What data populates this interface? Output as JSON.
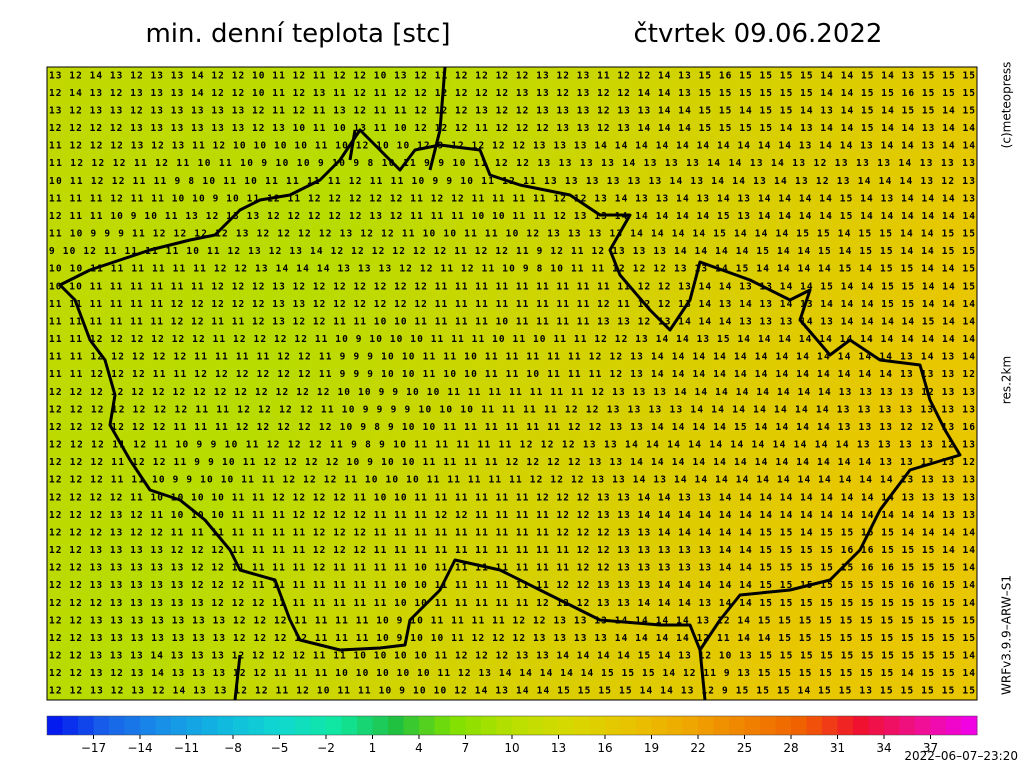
{
  "header": {
    "title": "min. denní teplota [stc]",
    "date": "čtvrtek 09.06.2022"
  },
  "side_labels": {
    "copyright": "(c)meteopress",
    "resolution": "res.2km",
    "model": "WRFv3.9.9–ARW–S1"
  },
  "timestamp": "2022–06–07–23:20",
  "map": {
    "grid": [
      "13 12 14 13 12 13 13 14 12 12 10 11 12 11 12 12 10 13 12 11 12 12 12 12 13 12 13 11 12 12 14 13 15 16 15 15 15 15 14 14 15 14 13 15 15 15",
      "12 14 13 12 13 13 13 14 12 12 10 11 12 13 11 12 11 12 12 12 12 12 12 13 13 12 13 12 12 14 14 13 15 15 15 15 15 15 14 14 15 15 16 15 15 15",
      "13 12 13 13 12 13 13 13 13 13 12 11 12 11 13 12 11 11 12 12 12 13 12 12 13 13 13 12 13 13 14 14 15 15 14 15 15 14 13 14 15 14 15 15 14 15",
      "12 12 12 12 13 13 13 13 13 13 12 13 10 11 10 13 11 10 12 12 12 11 12 12 12 13 13 12 13 14 14 14 15 15 15 15 14 13 14 14 15 14 14 13 14 14",
      "11 12 12 12 13 12 13 11 12 10 10 10 10 11 10 12 10 10 12 9 12 12 12 12 13 13 13 14 14 14 14 14 14 14 14 14 14 13 14 14 13 14 14 13 14 14",
      "11 12 12 12 11 12 11 10 11 10 9 10 10 9 10 9 8 10 11 9 9 10 11 12 12 13 13 13 13 14 13 13 13 14 14 13 14 13 12 13 13 13 14 13 13 13",
      "10 11 12 12 11 11 9 8 10 11 10 11 11 11 11 12 11 11 10 9 9 10 11 12 11 13 13 13 13 13 13 14 13 14 14 13 14 13 12 13 14 14 14 13 12 13",
      "11 11 11 12 11 11 10 10 9 10 11 12 11 12 12 12 12 12 11 12 12 11 11 11 11 12 12 13 14 13 13 14 13 14 13 14 14 14 14 15 14 13 14 14 14 13",
      "12 11 11 10 9 10 11 13 12 13 13 12 12 12 12 12 13 12 11 11 11 10 10 11 11 12 13 13 14 14 14 14 14 15 13 14 14 14 14 15 14 14 14 14 14 14",
      "11 10 9 9 9 11 12 12 12 12 13 12 12 12 12 13 12 12 11 10 10 11 11 10 12 13 13 13 13 14 14 14 14 15 14 14 14 15 15 14 15 15 14 14 15 15",
      "9 10 12 11 11 11 11 10 11 12 13 12 13 14 12 12 12 12 12 12 11 12 12 11 9 12 11 12 13 13 13 14 14 14 14 15 14 14 15 14 15 15 14 14 15 15",
      "10 10 11 11 11 11 11 11 12 12 13 14 14 14 13 13 13 12 12 11 12 11 10 9 8 10 11 11 12 12 12 13 13 14 15 14 14 14 14 15 14 15 15 14 14 15",
      "10 10 11 11 11 11 11 11 12 12 12 13 12 12 12 12 12 12 12 11 11 11 11 11 11 11 11 11 11 12 12 13 14 14 13 13 14 14 15 14 14 15 15 14 14 15",
      "11 11 11 11 11 11 12 12 12 12 12 13 13 12 12 12 12 12 12 11 11 11 11 11 11 11 11 12 11 12 12 13 14 13 14 13 14 13 14 14 14 15 15 14 14 14",
      "11 11 11 11 11 11 12 12 11 11 12 13 12 12 11 11 10 10 11 11 11 11 10 11 11 11 11 13 13 12 13 14 14 14 13 13 13 14 13 14 14 14 14 15 14 14",
      "11 11 12 12 12 12 12 12 11 12 12 12 12 11 10 9 10 10 10 11 11 11 10 11 10 11 11 12 12 13 14 14 13 15 14 14 14 14 14 14 14 14 14 14 14 14",
      "11 11 12 12 12 12 12 11 11 11 11 12 12 11 9 9 9 10 10 11 11 10 11 11 11 11 11 12 12 13 14 14 14 14 14 14 14 14 14 14 14 14 13 14 13 14",
      "11 11 12 12 12 11 11 12 12 12 12 12 12 11 9 9 9 10 10 11 10 10 11 11 10 11 11 11 12 13 14 14 14 14 14 14 14 14 14 14 14 14 13 13 13 12",
      "12 12 12 12 12 12 12 12 12 12 12 12 12 12 10 10 9 9 10 10 11 11 11 11 11 11 11 12 13 13 13 14 14 14 14 14 14 14 14 13 13 13 13 12 13 13",
      "12 12 12 12 12 12 12 11 11 12 12 12 12 11 10 9 9 9 9 10 10 10 11 11 11 11 12 12 13 13 13 13 14 14 14 14 14 14 14 13 13 13 13 13 13 13",
      "12 12 12 12 12 12 11 11 11 12 12 12 12 12 10 9 8 9 10 10 11 11 11 11 11 11 12 12 13 13 14 14 14 14 15 14 14 14 14 13 13 13 12 12 13 16",
      "12 12 12 11 12 11 10 9 9 10 11 12 12 12 11 9 8 9 10 11 11 11 11 11 12 12 12 13 13 14 14 14 14 14 14 14 14 14 14 14 13 13 13 13 12 13",
      "12 12 12 11 12 12 11 9 9 10 11 12 12 12 12 10 9 10 10 11 11 11 11 12 12 12 12 13 13 14 14 14 14 14 14 14 14 14 14 14 14 13 13 13 13 12",
      "12 12 12 11 11 10 9 9 10 10 11 11 12 12 12 11 10 10 10 11 11 11 11 11 12 12 12 13 13 14 13 14 14 14 14 14 14 14 14 14 14 14 13 13 13 13",
      "12 12 12 12 11 10 10 10 10 11 11 12 12 12 12 11 10 10 11 11 11 11 11 11 12 12 12 13 13 14 14 13 13 14 14 14 14 14 14 14 14 14 13 13 13 13",
      "12 12 12 13 12 11 10 10 10 11 11 11 12 12 12 12 11 11 11 12 12 11 11 11 11 12 12 13 13 14 14 14 14 14 14 14 14 14 14 14 14 14 14 14 13 13",
      "12 12 12 13 12 12 11 11 11 11 11 11 11 12 12 12 11 11 11 11 11 11 11 11 11 12 12 12 13 13 14 14 14 14 14 15 15 14 15 15 15 15 14 14 14 14",
      "12 12 13 13 13 13 12 12 12 11 11 11 11 12 12 12 11 11 11 11 11 11 11 11 11 11 12 12 13 13 13 13 13 14 14 15 15 15 15 16 16 15 15 15 14 14",
      "12 12 13 13 13 13 13 12 12 11 11 11 11 12 11 11 11 11 10 11 11 11 11 11 11 11 12 12 13 13 13 13 13 14 14 15 15 15 15 15 16 16 15 15 15 14",
      "12 12 13 13 13 13 13 12 12 12 11 11 11 11 11 11 11 10 10 11 11 11 11 11 11 12 12 13 13 13 14 14 14 14 14 15 15 15 15 15 15 15 16 16 15 14",
      "12 12 12 13 13 13 13 13 12 12 12 11 11 11 11 11 11 10 10 11 11 11 11 11 12 12 12 13 13 14 14 14 13 14 14 15 15 15 15 15 15 15 15 15 15 14",
      "12 12 13 13 13 13 13 13 13 12 12 12 11 11 11 11 10 9 10 11 11 11 11 12 12 13 13 13 14 14 14 14 13 12 14 15 15 15 15 15 15 15 15 15 15 15",
      "12 12 13 13 13 13 13 13 13 12 12 12 12 11 11 11 10 9 10 10 11 12 12 12 13 13 13 13 14 14 14 14 12 11 14 14 15 15 15 15 15 15 15 15 15 15",
      "12 12 13 13 13 14 13 13 13 12 12 12 12 11 11 10 10 10 10 11 12 12 12 13 13 14 14 14 14 15 14 13 12 10 13 15 15 15 15 15 15 15 15 15 15 14",
      "12 12 13 12 13 14 13 13 13 12 12 11 11 11 10 10 10 10 10 11 12 13 14 14 14 14 14 15 15 15 14 12 11 9 13 15 15 15 15 15 15 15 14 15 15 14",
      "12 12 13 12 13 12 14 13 13 12 12 11 12 10 11 11 10 9 10 10 12 14 13 14 14 15 15 15 15 14 14 13 12 9 15 15 15 14 15 15 13 15 15 15 15 15"
    ]
  },
  "colorbar": {
    "lim": [
      -20,
      40
    ],
    "ticks": [
      {
        "value": -17,
        "label": "−17"
      },
      {
        "value": -14,
        "label": "−14"
      },
      {
        "value": -11,
        "label": "−11"
      },
      {
        "value": -8,
        "label": "−8"
      },
      {
        "value": -5,
        "label": "−5"
      },
      {
        "value": -2,
        "label": "−2"
      },
      1,
      4,
      7,
      10,
      13,
      16,
      19,
      22,
      25,
      28,
      31,
      34,
      37
    ],
    "colors": [
      "#0010f0",
      "#1860e8",
      "#1890e8",
      "#10b8e0",
      "#10d8d0",
      "#10e8a0",
      "#20c040",
      "#80e000",
      "#b8e000",
      "#d8d800",
      "#e8c400",
      "#f0a800",
      "#f08400",
      "#f06000",
      "#f01030",
      "#f01090",
      "#f000f0"
    ]
  }
}
